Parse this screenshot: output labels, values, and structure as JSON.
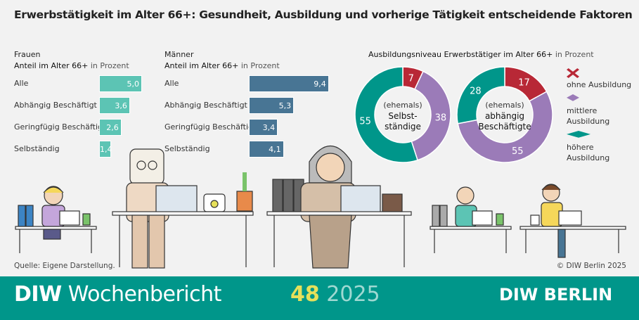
{
  "title": "Erwerbstätigkeit im Alter 66+: Gesundheit, Ausbildung und vorherige Tätigkeit entscheidende Faktoren",
  "chart_data": [
    {
      "type": "bar",
      "orientation": "horizontal",
      "title": "Frauen",
      "subtitle_bold": "Anteil im Alter 66+",
      "subtitle_unit": "in Prozent",
      "categories": [
        "Alle",
        "Abhängig Beschäftigt",
        "Geringfügig Beschäftigt",
        "Selbständig"
      ],
      "values": [
        5.0,
        3.6,
        2.6,
        1.4
      ],
      "value_labels": [
        "5,0",
        "3,6",
        "2,6",
        "1,4"
      ],
      "color": "#5cc4b4"
    },
    {
      "type": "bar",
      "orientation": "horizontal",
      "title": "Männer",
      "subtitle_bold": "Anteil im Alter 66+",
      "subtitle_unit": "in Prozent",
      "categories": [
        "Alle",
        "Abhängig Beschäftigt",
        "Geringfügig Beschäftigt",
        "Selbständig"
      ],
      "values": [
        9.4,
        5.3,
        3.4,
        4.1
      ],
      "value_labels": [
        "9,4",
        "5,3",
        "3,4",
        "4,1"
      ],
      "color": "#487594"
    },
    {
      "type": "pie",
      "donut": true,
      "title_bold": "Ausbildungsniveau Erwerbstätiger im Alter 66+",
      "title_unit": "in Prozent",
      "charts": [
        {
          "center_top": "(ehemals)",
          "center_main": "Selbst-\nständige",
          "values": [
            7,
            38,
            55
          ]
        },
        {
          "center_top": "(ehemals)",
          "center_main": "abhängig\nBeschäftigte",
          "values": [
            17,
            55,
            28
          ]
        }
      ],
      "legend": [
        "ohne Ausbildung",
        "mittlere Ausbildung",
        "höhere Ausbildung"
      ],
      "colors": [
        "#b82836",
        "#9b7bb8",
        "#00968a"
      ],
      "legend_placement": "right"
    }
  ],
  "legend_lines": [
    [
      "ohne Ausbildung"
    ],
    [
      "mittlere",
      "Ausbildung"
    ],
    [
      "höhere",
      "Ausbildung"
    ]
  ],
  "footer": {
    "source": "Quelle: Eigene Darstellung.",
    "copyright": "© DIW Berlin 2025"
  },
  "banner": {
    "brand_bold": "DIW",
    "brand": "Wochenbericht",
    "issue": "48",
    "year": "2025",
    "logo": "DIW BERLIN"
  }
}
